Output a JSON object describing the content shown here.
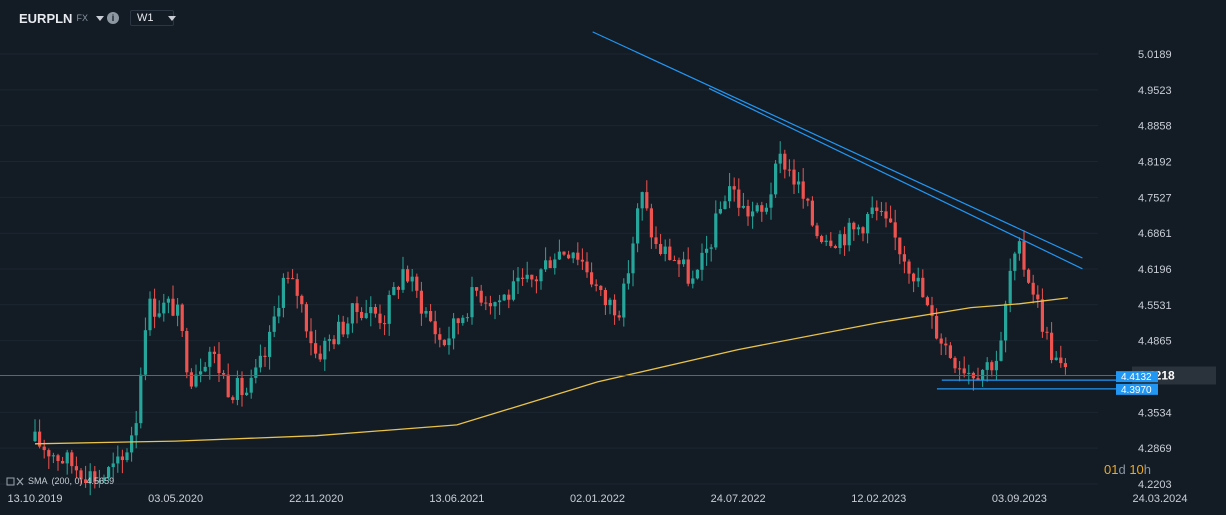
{
  "header": {
    "symbol": "EURPLN",
    "market": "FX",
    "timeframe": "W1"
  },
  "indicator": {
    "label": "SMA",
    "params": "(200, 0)",
    "value": "4.5659",
    "color": "#e8c24a"
  },
  "countdown": {
    "days": "01",
    "days_unit": "d",
    "hours": "10",
    "hours_unit": "h"
  },
  "colors": {
    "up": "#26a69a",
    "down": "#ef5350",
    "trend": "#2196f3",
    "sma": "#e8c24a",
    "price_line": "#5b6672"
  },
  "chart_data": {
    "type": "candlestick",
    "ylim": [
      4.2203,
      5.0189
    ],
    "y_ticks": [
      "5.0189",
      "4.9523",
      "4.8858",
      "4.8192",
      "4.7527",
      "4.6861",
      "4.6196",
      "4.5531",
      "4.4865",
      "4.3534",
      "4.2869",
      "4.2203"
    ],
    "x_ticks": [
      "13.10.2019",
      "03.05.2020",
      "22.11.2020",
      "13.06.2021",
      "02.01.2022",
      "24.07.2022",
      "12.02.2023",
      "03.09.2023",
      "24.03.2024"
    ],
    "x_range": [
      "2019-10-13",
      "2024-03-24"
    ],
    "current_price": "4.4218",
    "support_labels": [
      "4.4132",
      "4.3970"
    ],
    "series_points": [
      [
        "2019-10-13",
        4.3
      ],
      [
        "2019-12-01",
        4.26
      ],
      [
        "2020-01-12",
        4.23
      ],
      [
        "2020-02-16",
        4.26
      ],
      [
        "2020-03-08",
        4.35
      ],
      [
        "2020-03-22",
        4.55
      ],
      [
        "2020-04-19",
        4.55
      ],
      [
        "2020-05-03",
        4.55
      ],
      [
        "2020-05-24",
        4.42
      ],
      [
        "2020-06-21",
        4.47
      ],
      [
        "2020-07-19",
        4.4
      ],
      [
        "2020-08-16",
        4.39
      ],
      [
        "2020-09-13",
        4.47
      ],
      [
        "2020-10-04",
        4.6
      ],
      [
        "2020-10-25",
        4.58
      ],
      [
        "2020-11-22",
        4.46
      ],
      [
        "2020-12-20",
        4.5
      ],
      [
        "2021-01-24",
        4.55
      ],
      [
        "2021-02-28",
        4.53
      ],
      [
        "2021-03-28",
        4.62
      ],
      [
        "2021-04-25",
        4.55
      ],
      [
        "2021-05-23",
        4.48
      ],
      [
        "2021-06-13",
        4.52
      ],
      [
        "2021-07-11",
        4.58
      ],
      [
        "2021-08-08",
        4.56
      ],
      [
        "2021-09-05",
        4.58
      ],
      [
        "2021-10-03",
        4.6
      ],
      [
        "2021-10-31",
        4.65
      ],
      [
        "2021-11-28",
        4.66
      ],
      [
        "2021-12-19",
        4.62
      ],
      [
        "2022-01-09",
        4.56
      ],
      [
        "2022-02-06",
        4.55
      ],
      [
        "2022-03-06",
        4.76
      ],
      [
        "2022-03-27",
        4.66
      ],
      [
        "2022-04-24",
        4.64
      ],
      [
        "2022-05-22",
        4.59
      ],
      [
        "2022-06-19",
        4.69
      ],
      [
        "2022-07-10",
        4.78
      ],
      [
        "2022-07-31",
        4.73
      ],
      [
        "2022-08-28",
        4.72
      ],
      [
        "2022-09-25",
        4.83
      ],
      [
        "2022-10-16",
        4.78
      ],
      [
        "2022-11-13",
        4.69
      ],
      [
        "2022-12-11",
        4.68
      ],
      [
        "2023-01-08",
        4.69
      ],
      [
        "2023-02-05",
        4.73
      ],
      [
        "2023-03-05",
        4.68
      ],
      [
        "2023-04-02",
        4.62
      ],
      [
        "2023-04-30",
        4.52
      ],
      [
        "2023-05-28",
        4.46
      ],
      [
        "2023-06-25",
        4.43
      ],
      [
        "2023-07-16",
        4.44
      ],
      [
        "2023-08-06",
        4.46
      ],
      [
        "2023-08-20",
        4.61
      ],
      [
        "2023-09-03",
        4.65
      ],
      [
        "2023-09-24",
        4.58
      ],
      [
        "2023-10-15",
        4.48
      ],
      [
        "2023-10-29",
        4.44
      ],
      [
        "2023-11-12",
        4.42
      ]
    ],
    "sma": [
      [
        "2019-10-13",
        4.295
      ],
      [
        "2020-05-03",
        4.3
      ],
      [
        "2020-11-22",
        4.31
      ],
      [
        "2021-06-13",
        4.33
      ],
      [
        "2022-01-02",
        4.41
      ],
      [
        "2022-07-24",
        4.47
      ],
      [
        "2023-02-12",
        4.52
      ],
      [
        "2023-06-25",
        4.548
      ],
      [
        "2023-09-03",
        4.555
      ],
      [
        "2023-11-12",
        4.566
      ]
    ],
    "trend_lines": [
      {
        "from": [
          "2021-12-26",
          5.06
        ],
        "to": [
          "2023-12-03",
          4.64
        ]
      },
      {
        "from": [
          "2022-06-12",
          4.955
        ],
        "to": [
          "2023-12-03",
          4.62
        ]
      }
    ],
    "support_lines": [
      {
        "from": [
          "2023-05-14",
          4.4132
        ],
        "to": [
          "2024-03-17",
          4.4132
        ]
      },
      {
        "from": [
          "2023-05-07",
          4.397
        ],
        "to": [
          "2024-03-17",
          4.397
        ]
      }
    ]
  }
}
